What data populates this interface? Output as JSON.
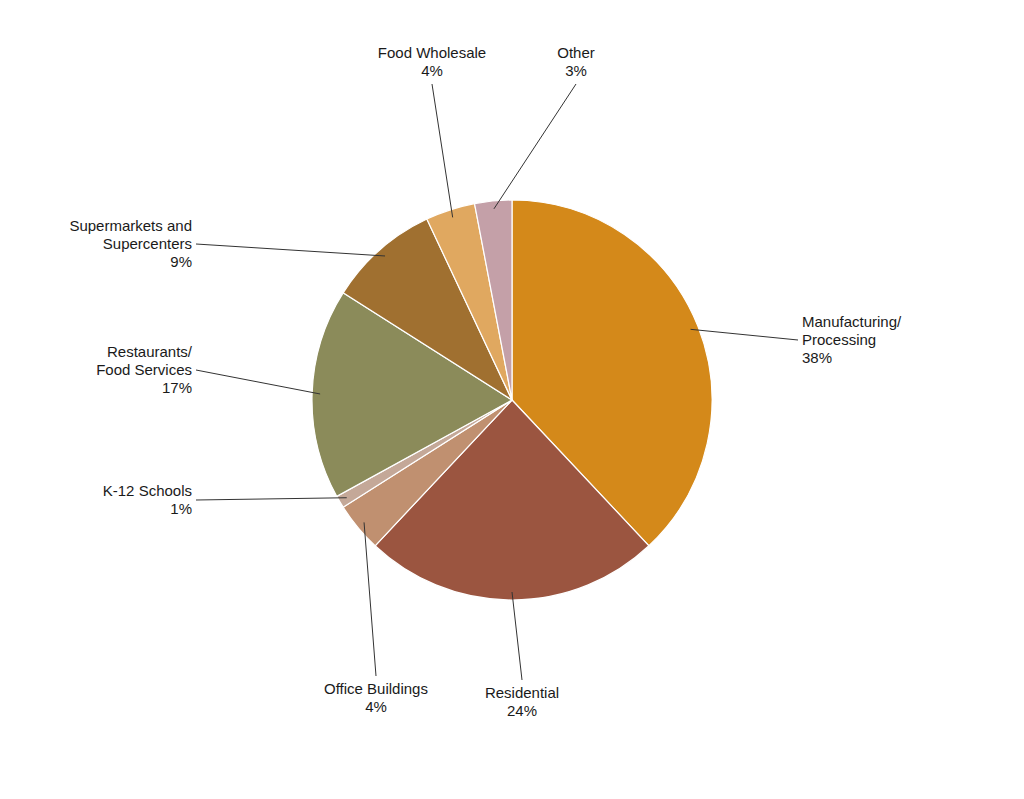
{
  "chart_data": {
    "type": "pie",
    "categories": [
      "Manufacturing/\nProcessing",
      "Residential",
      "Office Buildings",
      "K-12 Schools",
      "Restaurants/\nFood Services",
      "Supermarkets and\nSupercenters",
      "Food Wholesale",
      "Other"
    ],
    "values": [
      38,
      24,
      4,
      1,
      17,
      9,
      4,
      3
    ],
    "value_labels": [
      "38%",
      "24%",
      "4%",
      "1%",
      "17%",
      "9%",
      "4%",
      "3%"
    ],
    "colors": [
      "#D4891A",
      "#9B5540",
      "#C09070",
      "#C4A898",
      "#8B8B5A",
      "#A07030",
      "#E0A860",
      "#C4A0A8"
    ],
    "data_labels": true
  }
}
